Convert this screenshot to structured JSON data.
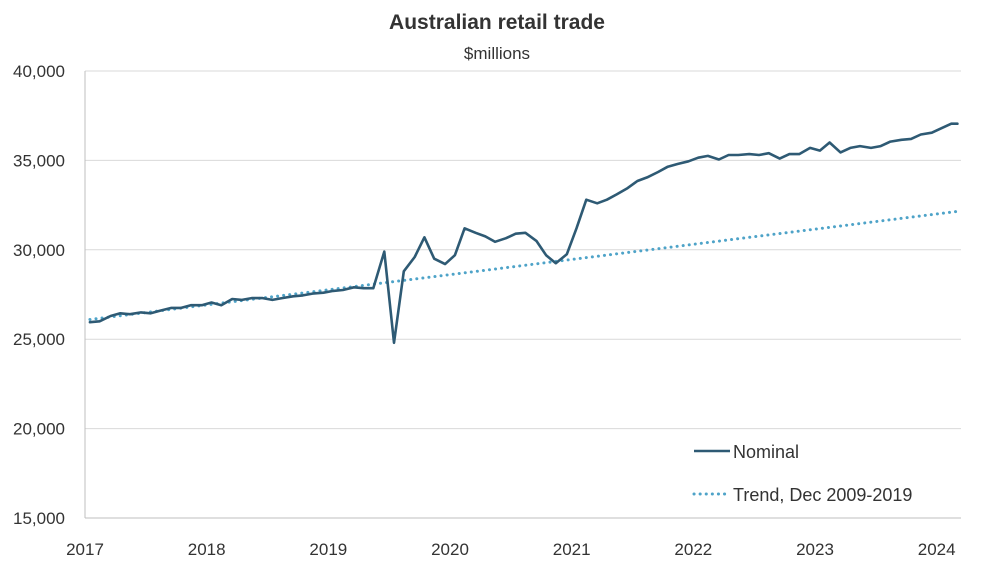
{
  "chart_data": {
    "type": "line",
    "title": "Australian retail trade",
    "subtitle": "$millions",
    "xlabel": "",
    "ylabel": "",
    "xlim": [
      2017,
      2024.2
    ],
    "ylim": [
      15000,
      40000
    ],
    "y_ticks": [
      15000,
      20000,
      25000,
      30000,
      35000,
      40000
    ],
    "y_tick_labels": [
      "15,000",
      "20,000",
      "25,000",
      "30,000",
      "35,000",
      "40,000"
    ],
    "x_ticks": [
      2017,
      2018,
      2019,
      2020,
      2021,
      2022,
      2023,
      2024
    ],
    "x_tick_labels": [
      "2017",
      "2018",
      "2019",
      "2020",
      "2021",
      "2022",
      "2023",
      "2024"
    ],
    "grid": "horizontal",
    "legend_position": "bottom-right",
    "colors": {
      "nominal": "#2e5a74",
      "trend": "#4ea3c8",
      "grid": "#d9d9d9",
      "text": "#333333"
    },
    "series": [
      {
        "name": "Nominal",
        "style": "solid",
        "x": [
          2017.04,
          2017.12,
          2017.21,
          2017.29,
          2017.37,
          2017.46,
          2017.54,
          2017.62,
          2017.71,
          2017.79,
          2017.87,
          2017.96,
          2018.04,
          2018.12,
          2018.21,
          2018.29,
          2018.37,
          2018.46,
          2018.54,
          2018.62,
          2018.71,
          2018.79,
          2018.87,
          2018.96,
          2019.04,
          2019.12,
          2019.21,
          2019.29,
          2019.37,
          2019.46,
          2019.54,
          2019.62,
          2019.71,
          2019.79,
          2019.87,
          2019.96,
          2020.04,
          2020.12,
          2020.21,
          2020.29,
          2020.37,
          2020.46,
          2020.54,
          2020.62,
          2020.71,
          2020.79,
          2020.87,
          2020.96,
          2021.04,
          2021.12,
          2021.21,
          2021.29,
          2021.37,
          2021.46,
          2021.54,
          2021.62,
          2021.71,
          2021.79,
          2021.87,
          2021.96,
          2022.04,
          2022.12,
          2022.21,
          2022.29,
          2022.37,
          2022.46,
          2022.54,
          2022.62,
          2022.71,
          2022.79,
          2022.87,
          2022.96,
          2023.04,
          2023.12,
          2023.21,
          2023.29,
          2023.37,
          2023.46,
          2023.54,
          2023.62,
          2023.71,
          2023.79,
          2023.87,
          2023.96,
          2024.04,
          2024.12,
          2024.17
        ],
        "values": [
          25950,
          26000,
          26300,
          26450,
          26400,
          26500,
          26450,
          26600,
          26750,
          26750,
          26900,
          26900,
          27050,
          26900,
          27250,
          27200,
          27300,
          27300,
          27200,
          27300,
          27400,
          27450,
          27550,
          27600,
          27700,
          27750,
          27900,
          27850,
          27850,
          29900,
          24800,
          28800,
          29600,
          30700,
          29500,
          29200,
          29700,
          31200,
          30950,
          30750,
          30450,
          30650,
          30900,
          30950,
          30500,
          29700,
          29250,
          29750,
          31200,
          32800,
          32600,
          32800,
          33100,
          33450,
          33850,
          34050,
          34350,
          34650,
          34800,
          34950,
          35150,
          35250,
          35050,
          35300,
          35300,
          35350,
          35300,
          35400,
          35100,
          35350,
          35350,
          35700,
          35550,
          36000,
          35450,
          35700,
          35800,
          35700,
          35800,
          36050,
          36150,
          36200,
          36450,
          36550,
          36800,
          37050,
          37050
        ]
      },
      {
        "name": "Trend, Dec 2009-2019",
        "style": "dotted",
        "x": [
          2017.04,
          2024.17
        ],
        "values": [
          26100,
          32150
        ]
      }
    ]
  }
}
